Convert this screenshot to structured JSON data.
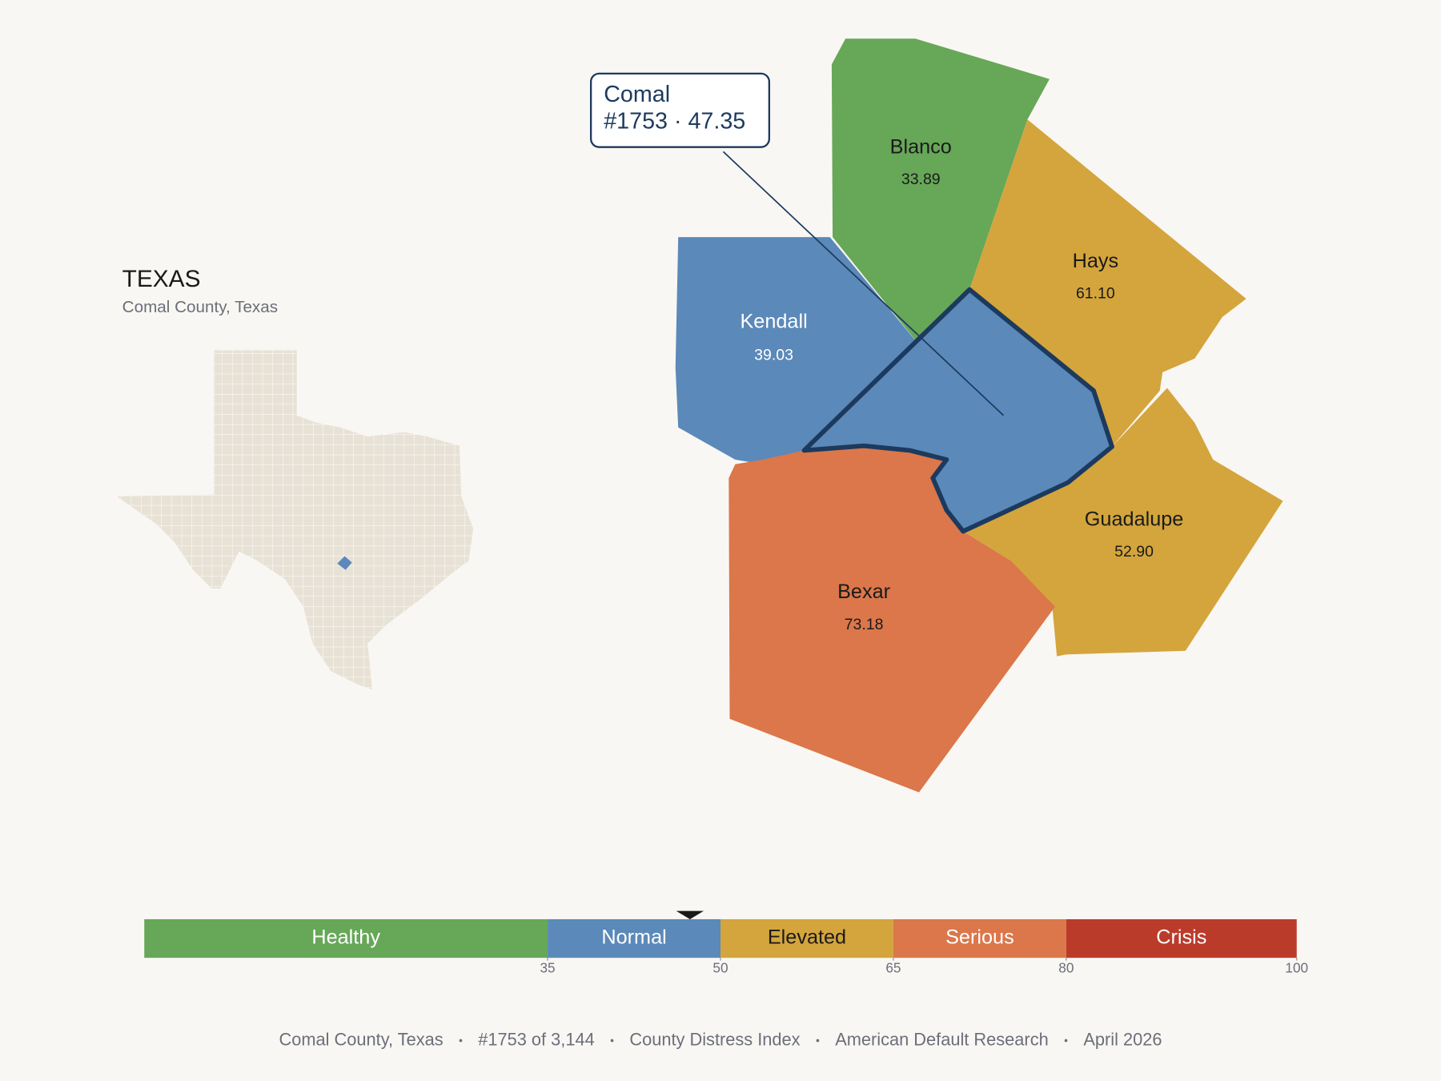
{
  "map": {
    "title": "TEXAS",
    "subtitle": "Comal County, Texas",
    "counties": [
      {
        "name": "Blanco",
        "value": "33.89",
        "color": "#67a758"
      },
      {
        "name": "Hays",
        "value": "61.10",
        "color": "#d4a53c"
      },
      {
        "name": "Kendall",
        "value": "39.03",
        "color": "#5b89b9"
      },
      {
        "name": "Guadalupe",
        "value": "52.90",
        "color": "#d4a53c"
      },
      {
        "name": "Bexar",
        "value": "73.18",
        "color": "#db774a"
      },
      {
        "name": "Comal",
        "color": "#5b89b9"
      }
    ],
    "callout": {
      "name": "Comal",
      "label": "#1753 · 47.35"
    }
  },
  "scale": {
    "lim": [
      0,
      100
    ],
    "ticks": [
      35,
      50,
      65,
      80,
      100
    ],
    "marker": 47.35,
    "bands": [
      {
        "name": "Healthy",
        "color": "#67a758"
      },
      {
        "name": "Normal",
        "color": "#5b89b9"
      },
      {
        "name": "Elevated",
        "color": "#d4a53c"
      },
      {
        "name": "Serious",
        "color": "#db774a"
      },
      {
        "name": "Crisis",
        "color": "#bb3b2b"
      }
    ]
  },
  "footer": [
    "Comal County, Texas",
    "#1753 of 3,144",
    "County Distress Index",
    "American Default Research",
    "April 2026"
  ]
}
